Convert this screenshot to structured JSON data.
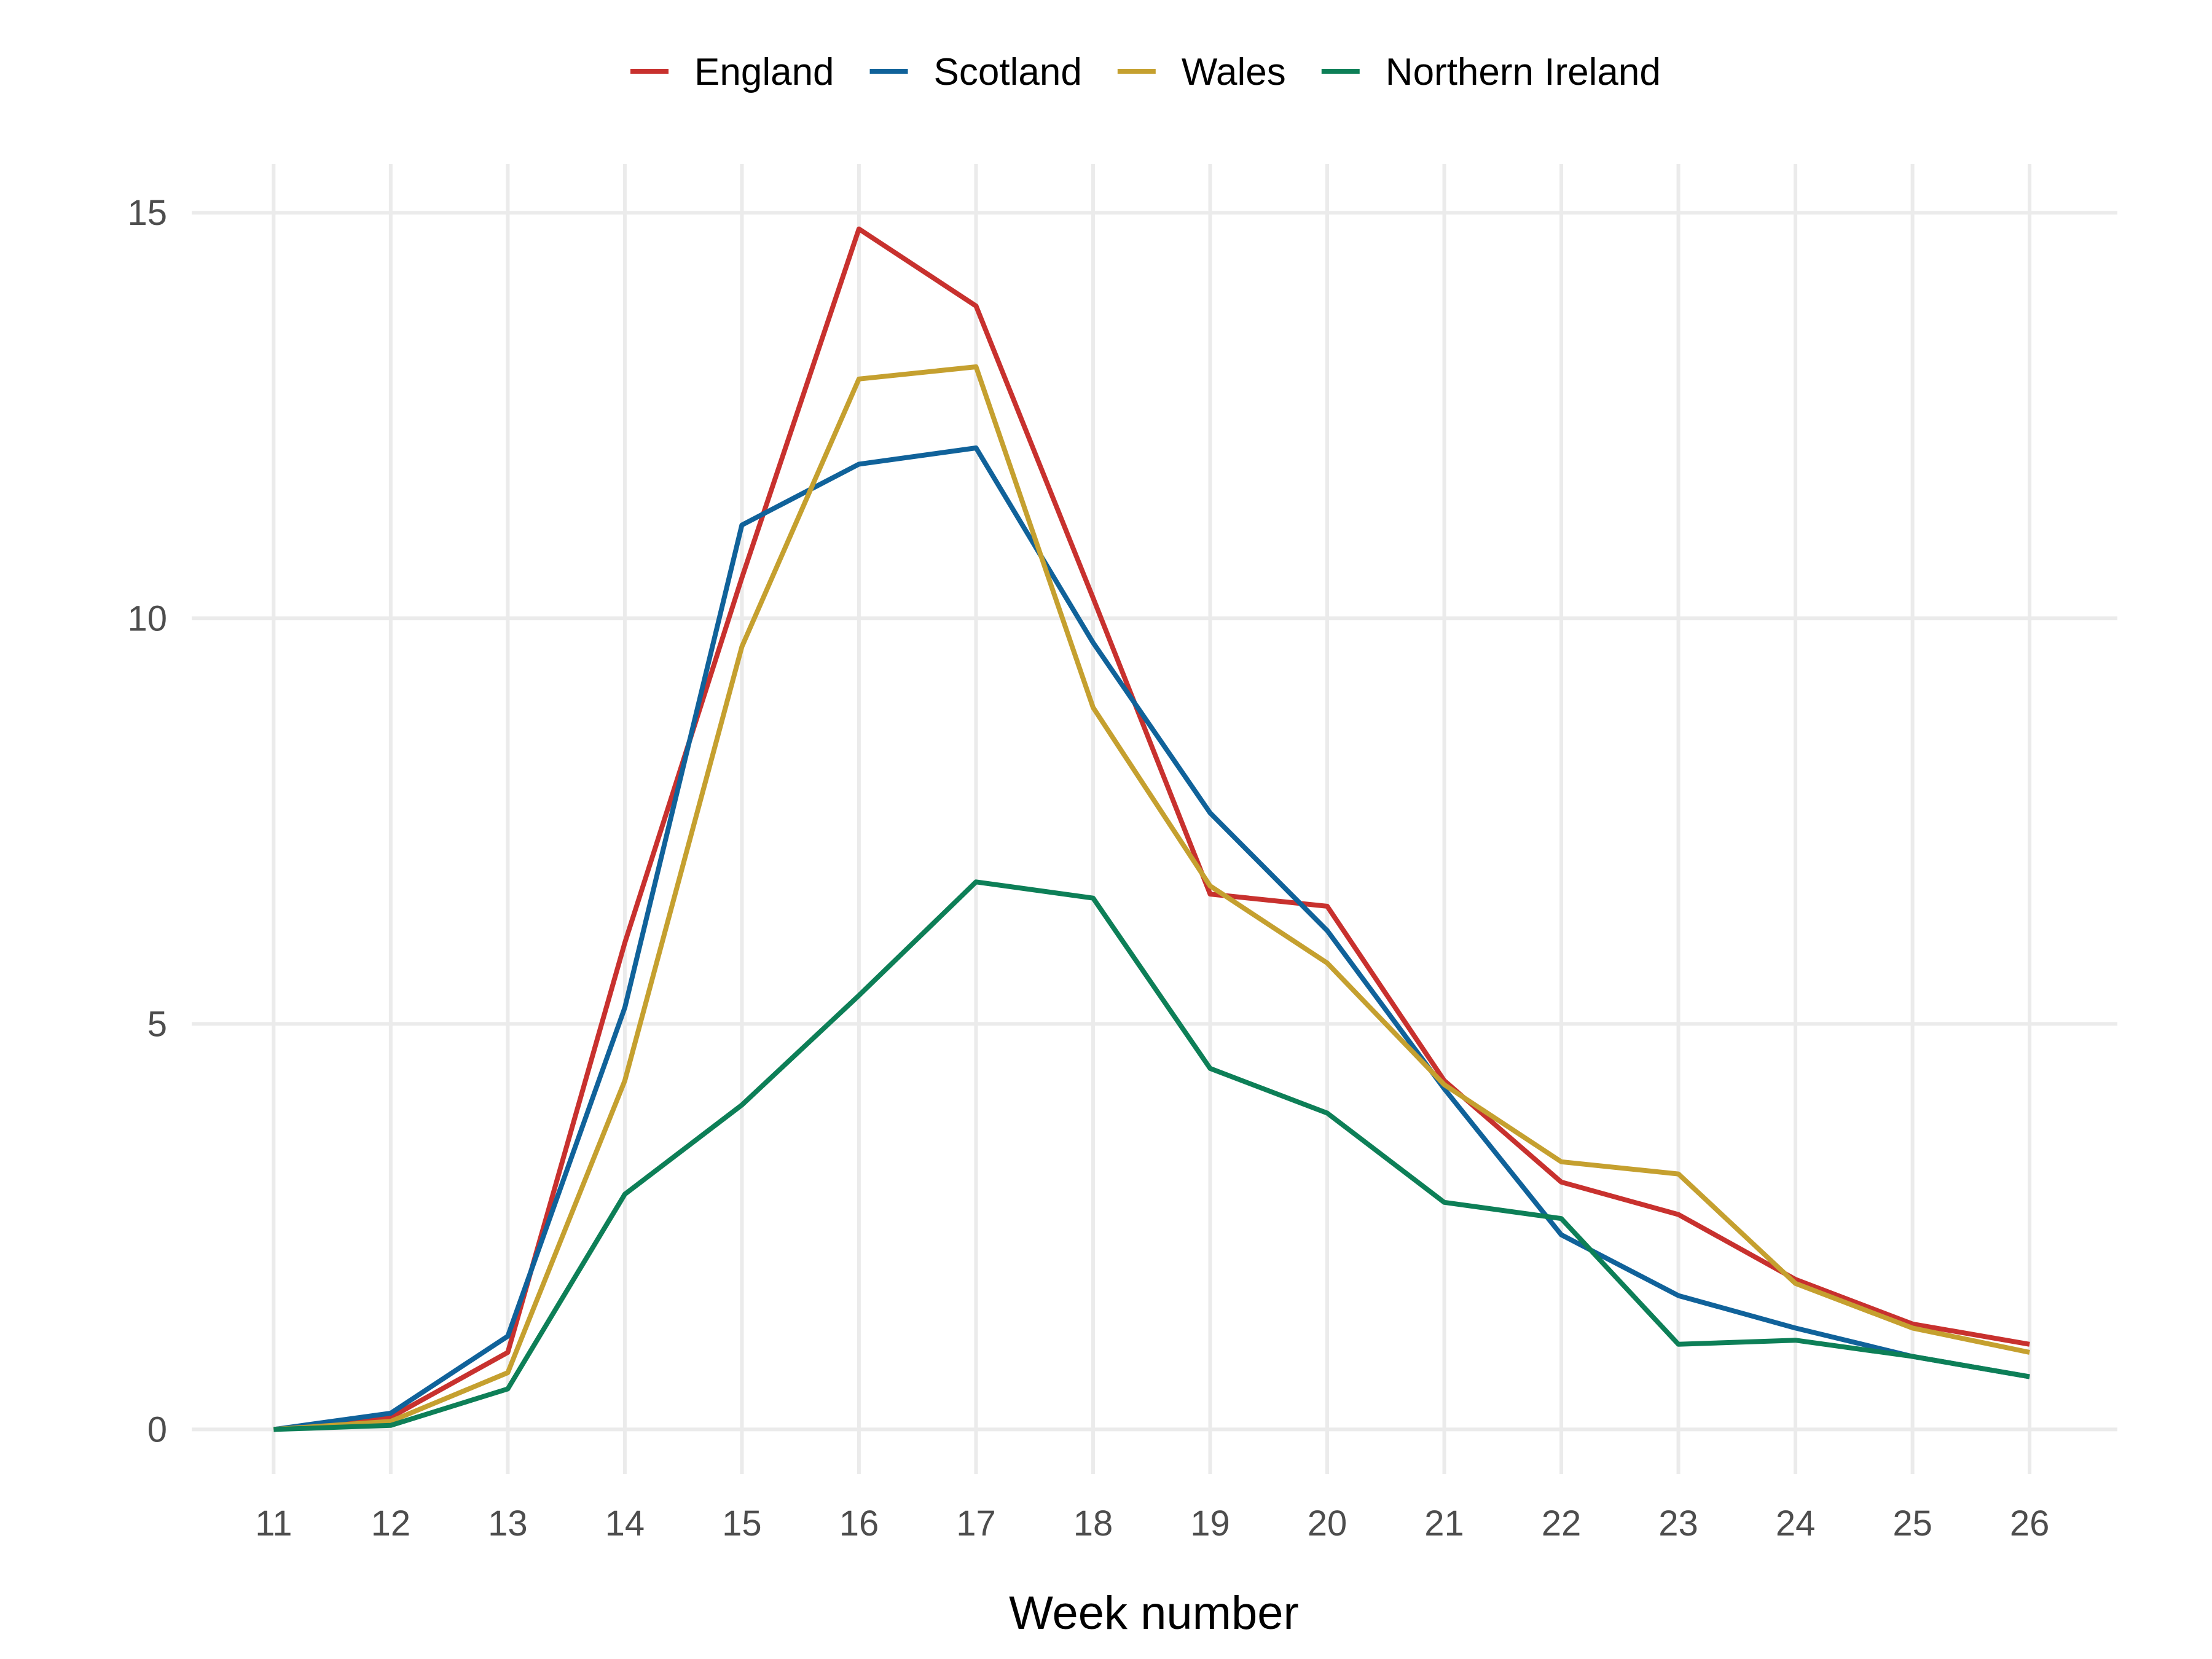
{
  "chart_data": {
    "type": "line",
    "title": "",
    "xlabel": "Week number",
    "ylabel": "",
    "x": [
      11,
      12,
      13,
      14,
      15,
      16,
      17,
      18,
      19,
      20,
      21,
      22,
      23,
      24,
      25,
      26
    ],
    "x_ticks": [
      "11",
      "12",
      "13",
      "14",
      "15",
      "16",
      "17",
      "18",
      "19",
      "20",
      "21",
      "22",
      "23",
      "24",
      "25",
      "26"
    ],
    "y_ticks": [
      "0",
      "5",
      "10",
      "15"
    ],
    "xlim": [
      10.3,
      26.75
    ],
    "ylim": [
      -0.55,
      15.6
    ],
    "grid": true,
    "legend_position": "top",
    "series": [
      {
        "name": "England",
        "color": "#c8312e",
        "values": [
          0.0,
          0.15,
          0.95,
          6.0,
          10.5,
          14.8,
          13.85,
          10.25,
          6.6,
          6.45,
          4.3,
          3.05,
          2.65,
          1.85,
          1.3,
          1.05
        ]
      },
      {
        "name": "Scotland",
        "color": "#10629a",
        "values": [
          0.0,
          0.2,
          1.15,
          5.2,
          11.15,
          11.9,
          12.1,
          9.7,
          7.6,
          6.15,
          4.2,
          2.4,
          1.65,
          1.25,
          0.9,
          0.65
        ]
      },
      {
        "name": "Wales",
        "color": "#c5a02f",
        "values": [
          0.0,
          0.1,
          0.7,
          4.3,
          9.65,
          12.95,
          13.1,
          8.9,
          6.7,
          5.75,
          4.25,
          3.3,
          3.15,
          1.8,
          1.25,
          0.95
        ]
      },
      {
        "name": "Northern Ireland",
        "color": "#0d7f57",
        "values": [
          0.0,
          0.05,
          0.5,
          2.9,
          4.0,
          5.35,
          6.75,
          6.55,
          4.45,
          3.9,
          2.8,
          2.6,
          1.05,
          1.1,
          0.9,
          0.65
        ]
      }
    ]
  }
}
